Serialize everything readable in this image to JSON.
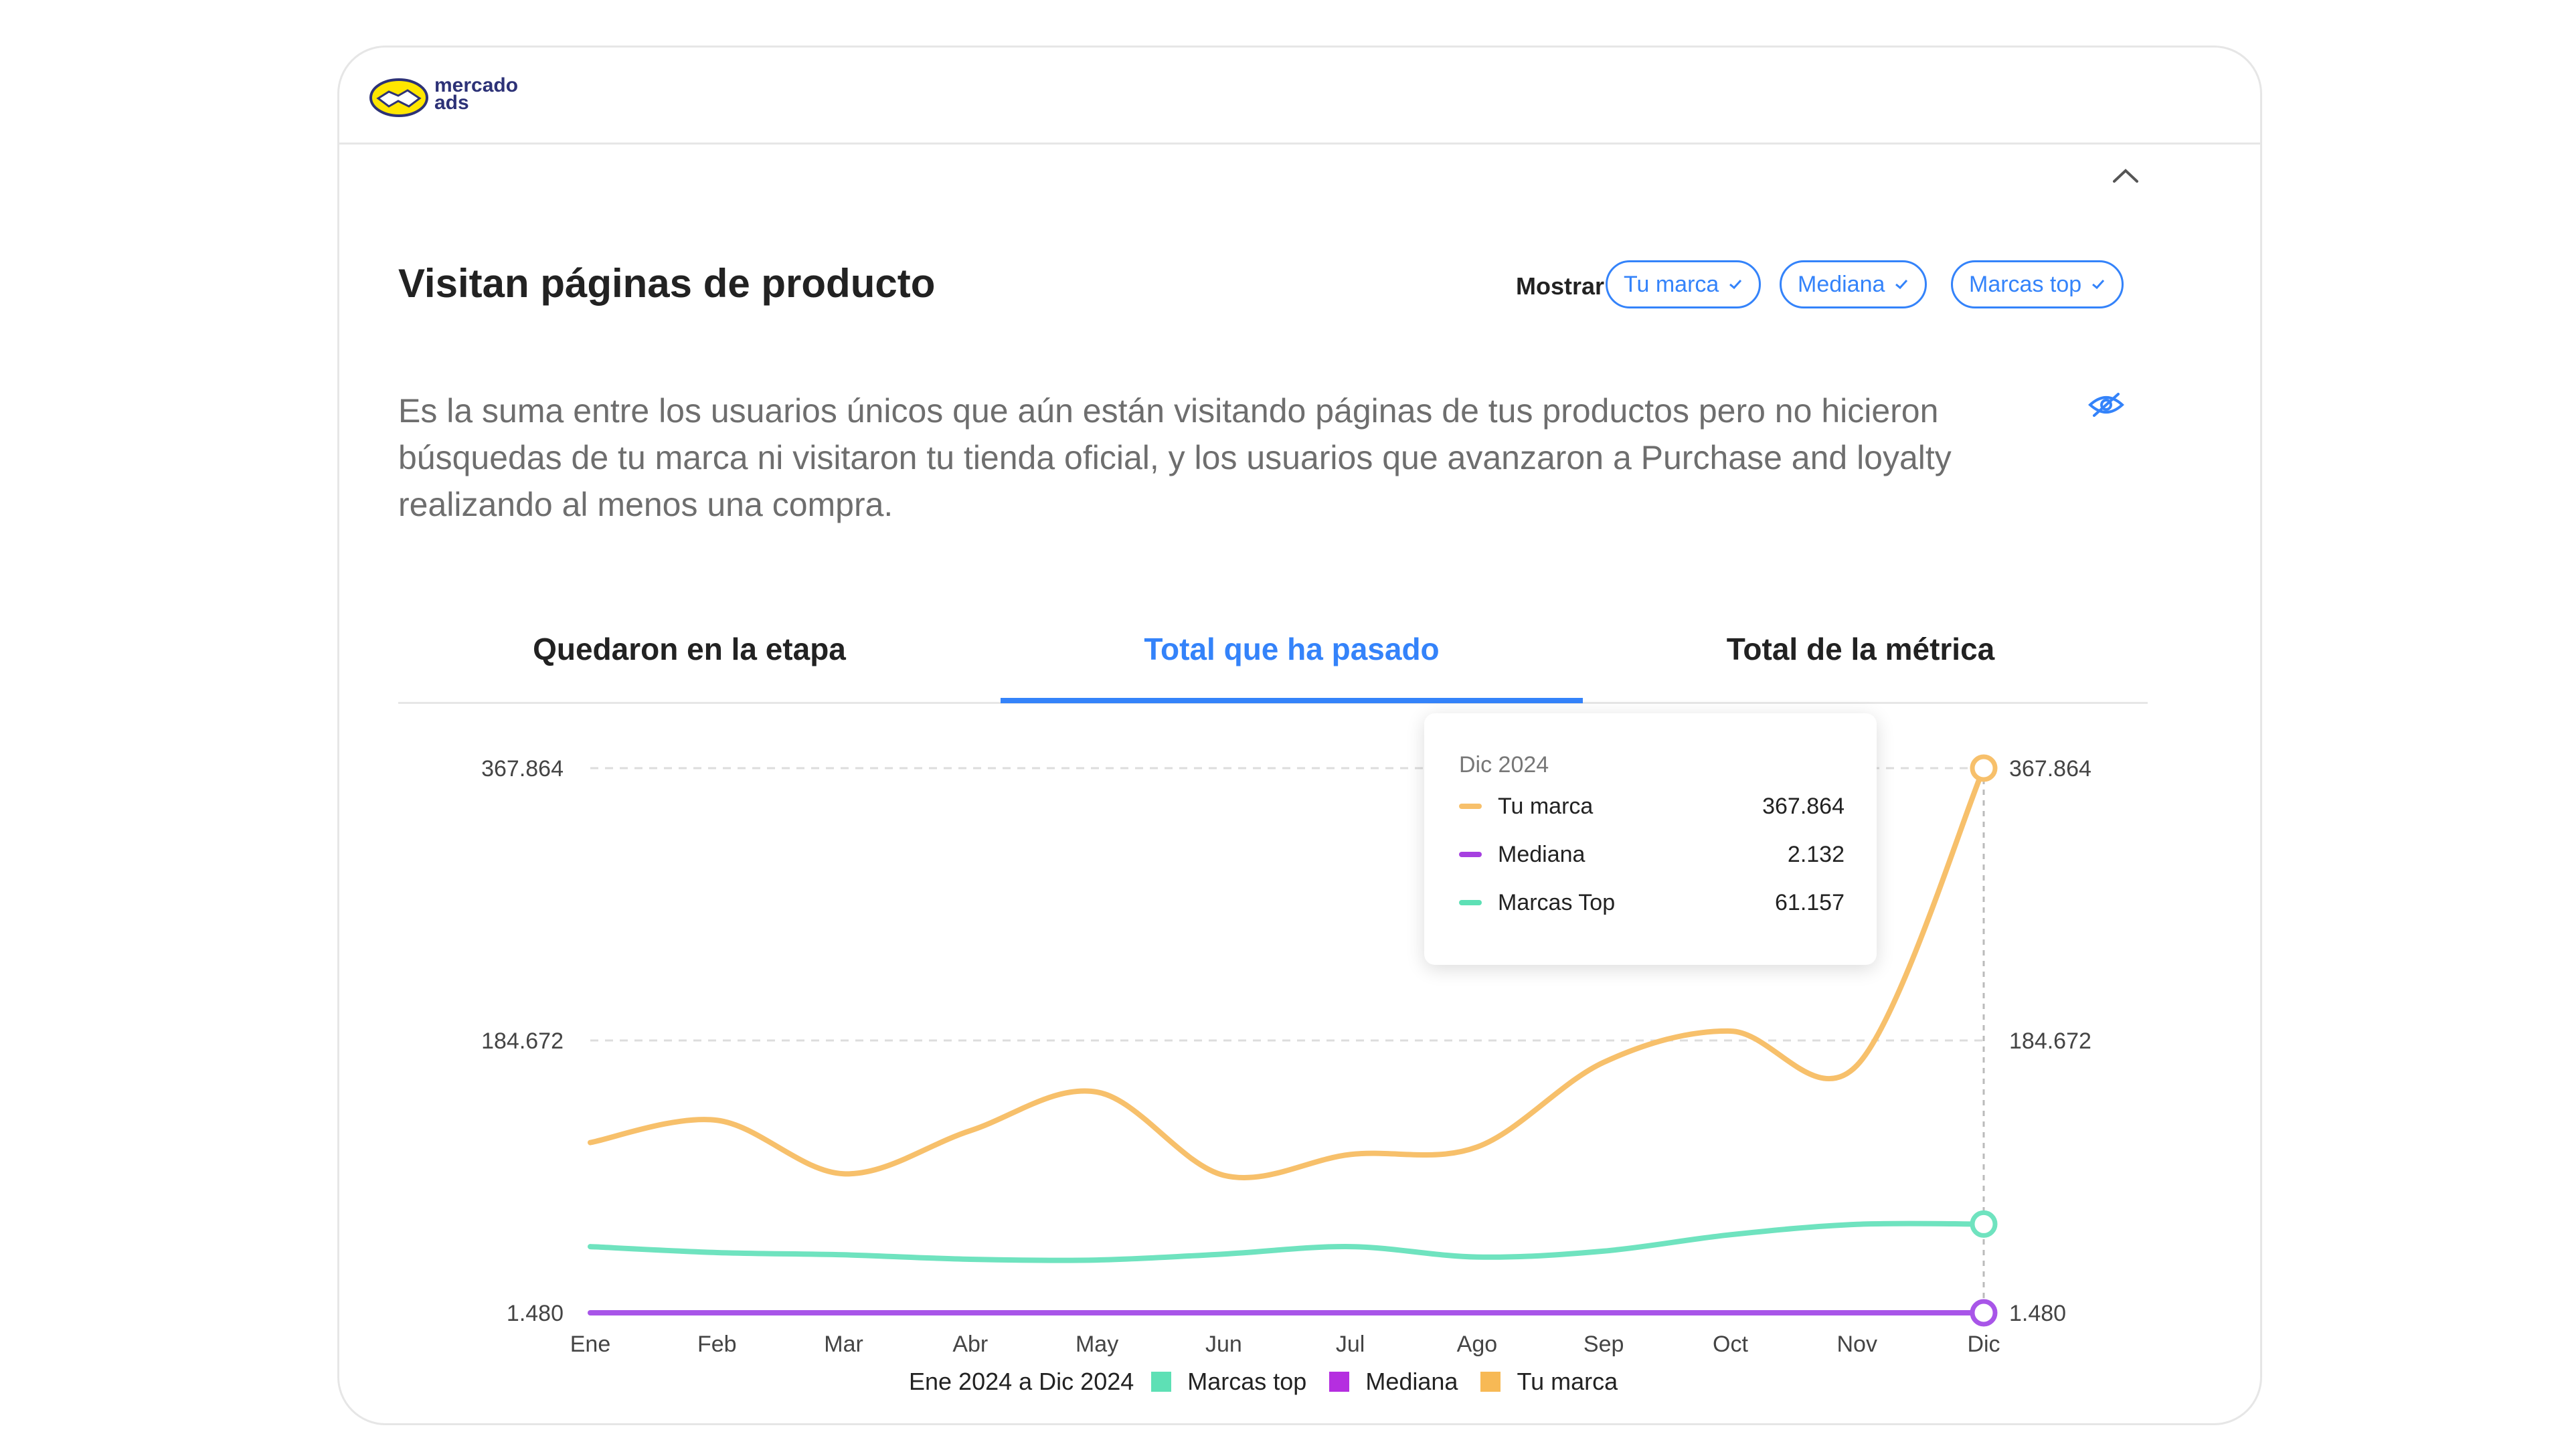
{
  "brand": {
    "name_line1": "mercado",
    "name_line2": "ads"
  },
  "card": {
    "title": "Visitan páginas de producto",
    "description": "Es la suma entre los usuarios únicos que aún están visitando páginas de tus productos pero no hicieron búsquedas de tu marca ni visitaron tu tienda oficial, y los usuarios que avanzaron a Purchase and loyalty realizando al menos una compra."
  },
  "filters": {
    "label": "Mostrar",
    "chips": [
      {
        "label": "Tu marca",
        "checked": true
      },
      {
        "label": "Mediana",
        "checked": true
      },
      {
        "label": "Marcas top",
        "checked": true
      }
    ]
  },
  "tabs": [
    {
      "label": "Quedaron en la etapa",
      "active": false
    },
    {
      "label": "Total que ha pasado",
      "active": true
    },
    {
      "label": "Total de la métrica",
      "active": false
    }
  ],
  "tooltip": {
    "title": "Dic 2024",
    "rows": [
      {
        "name": "Tu marca",
        "value": "367.864",
        "color": "#f7c06b"
      },
      {
        "name": "Mediana",
        "value": "2.132",
        "color": "#a640e0"
      },
      {
        "name": "Marcas Top",
        "value": "61.157",
        "color": "#5ee0b5"
      }
    ]
  },
  "legend": {
    "period": "Ene 2024 a Dic 2024",
    "items": [
      {
        "name": "Marcas top",
        "color": "#5ee0b5"
      },
      {
        "name": "Mediana",
        "color": "#b52ee0"
      },
      {
        "name": "Tu marca",
        "color": "#f7b955"
      }
    ]
  },
  "chart_data": {
    "type": "line",
    "categories": [
      "Ene",
      "Feb",
      "Mar",
      "Abr",
      "May",
      "Jun",
      "Jul",
      "Ago",
      "Sep",
      "Oct",
      "Nov",
      "Dic"
    ],
    "y_ticks": [
      "367.864",
      "184.672",
      "1.480"
    ],
    "y_tick_values": [
      367864,
      184672,
      1480
    ],
    "ylim": [
      1480,
      367864
    ],
    "grid": true,
    "series": [
      {
        "name": "Tu marca",
        "color": "#f7c06b",
        "values": [
          116000,
          131000,
          95000,
          124000,
          150000,
          94000,
          108000,
          113000,
          170000,
          191000,
          168000,
          367864
        ]
      },
      {
        "name": "Marcas Top",
        "color": "#6fe3bf",
        "values": [
          46000,
          42000,
          40500,
          37500,
          37000,
          41000,
          46000,
          39000,
          43000,
          54000,
          61000,
          61157
        ]
      },
      {
        "name": "Mediana",
        "color": "#a855e8",
        "values": [
          1480,
          1480,
          1480,
          1480,
          1480,
          1480,
          1480,
          1480,
          1480,
          1480,
          1480,
          2132
        ]
      }
    ],
    "highlight_index": 11
  }
}
